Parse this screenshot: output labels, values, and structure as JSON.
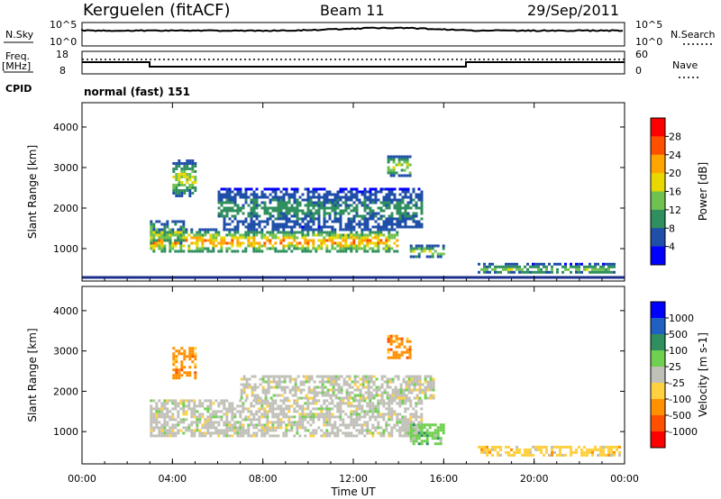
{
  "header": {
    "station": "Kerguelen (fitACF)",
    "beam": "Beam 11",
    "date": "29/Sep/2011"
  },
  "status_panels": {
    "nsky_label": "N.Sky",
    "nsky_ticks": [
      "10^5",
      "10^0"
    ],
    "nsearch_label": "N.Search",
    "nsearch_ticks": [
      "10^5",
      "10^0"
    ],
    "freq_label_1": "Freq.",
    "freq_label_2": "[MHz]",
    "freq_ticks": [
      "18",
      "8"
    ],
    "nave_label": "Nave",
    "nave_ticks": [
      "60",
      "0"
    ],
    "cpid_label": "CPID",
    "cpid_value": "normal (fast) 151"
  },
  "chart_data": [
    {
      "type": "heatmap",
      "name": "power",
      "ylabel": "Slant Range [km]",
      "yticks": [
        "1000",
        "2000",
        "3000",
        "4000"
      ],
      "ylim": [
        200,
        4600
      ],
      "xlim": [
        0,
        24
      ],
      "colorbar_label": "Power [dB]",
      "colorbar_ticks": [
        "4",
        "8",
        "12",
        "16",
        "20",
        "24",
        "28"
      ],
      "colorbar_range": [
        0,
        32
      ],
      "colors": [
        "#0000ff",
        "#1f4fa8",
        "#2f8f5f",
        "#6fc24f",
        "#e8d800",
        "#ffa500",
        "#ff5000",
        "#ff0000"
      ],
      "echo_regions": [
        {
          "t0": 3.0,
          "t1": 14.0,
          "r0": 900,
          "r1": 1500,
          "peak_db": 30
        },
        {
          "t0": 3.0,
          "t1": 4.5,
          "r0": 1100,
          "r1": 1700,
          "peak_db": 22
        },
        {
          "t0": 4.0,
          "t1": 5.0,
          "r0": 2300,
          "r1": 3200,
          "peak_db": 22
        },
        {
          "t0": 6.0,
          "t1": 15.0,
          "r0": 1500,
          "r1": 2500,
          "peak_db": 12
        },
        {
          "t0": 13.5,
          "t1": 14.5,
          "r0": 2800,
          "r1": 3300,
          "peak_db": 24
        },
        {
          "t0": 14.5,
          "t1": 16.0,
          "r0": 800,
          "r1": 1100,
          "peak_db": 22
        },
        {
          "t0": 17.5,
          "t1": 23.5,
          "r0": 400,
          "r1": 650,
          "peak_db": 18
        }
      ]
    },
    {
      "type": "heatmap",
      "name": "velocity",
      "ylabel": "Slant Range [km]",
      "yticks": [
        "1000",
        "2000",
        "3000",
        "4000"
      ],
      "ylim": [
        200,
        4600
      ],
      "xlim": [
        0,
        24
      ],
      "xlabel": "Time UT",
      "xticks": [
        "00:00",
        "04:00",
        "08:00",
        "12:00",
        "16:00",
        "20:00",
        "00:00"
      ],
      "colorbar_label": "Velocity [m s-1]",
      "colorbar_ticks": [
        "1000",
        "500",
        "100",
        "25",
        "-25",
        "-100",
        "-500",
        "-1000"
      ],
      "colors": [
        "#0000ff",
        "#2060c0",
        "#2f8f5f",
        "#6fd04f",
        "#c0c0b8",
        "#ffd040",
        "#ff9000",
        "#ff5000",
        "#ff0000"
      ],
      "echo_regions": [
        {
          "t0": 3.0,
          "t1": 15.0,
          "r0": 900,
          "r1": 1800,
          "color_index": 4
        },
        {
          "t0": 7.0,
          "t1": 15.5,
          "r0": 1800,
          "r1": 2400,
          "color_index": 4
        },
        {
          "t0": 4.0,
          "t1": 5.0,
          "r0": 2300,
          "r1": 3100,
          "color_index": 6
        },
        {
          "t0": 13.5,
          "t1": 14.5,
          "r0": 2800,
          "r1": 3400,
          "color_index": 6
        },
        {
          "t0": 14.5,
          "t1": 16.0,
          "r0": 700,
          "r1": 1200,
          "color_index": 3
        },
        {
          "t0": 17.5,
          "t1": 23.8,
          "r0": 400,
          "r1": 650,
          "color_index": 5
        }
      ]
    }
  ]
}
